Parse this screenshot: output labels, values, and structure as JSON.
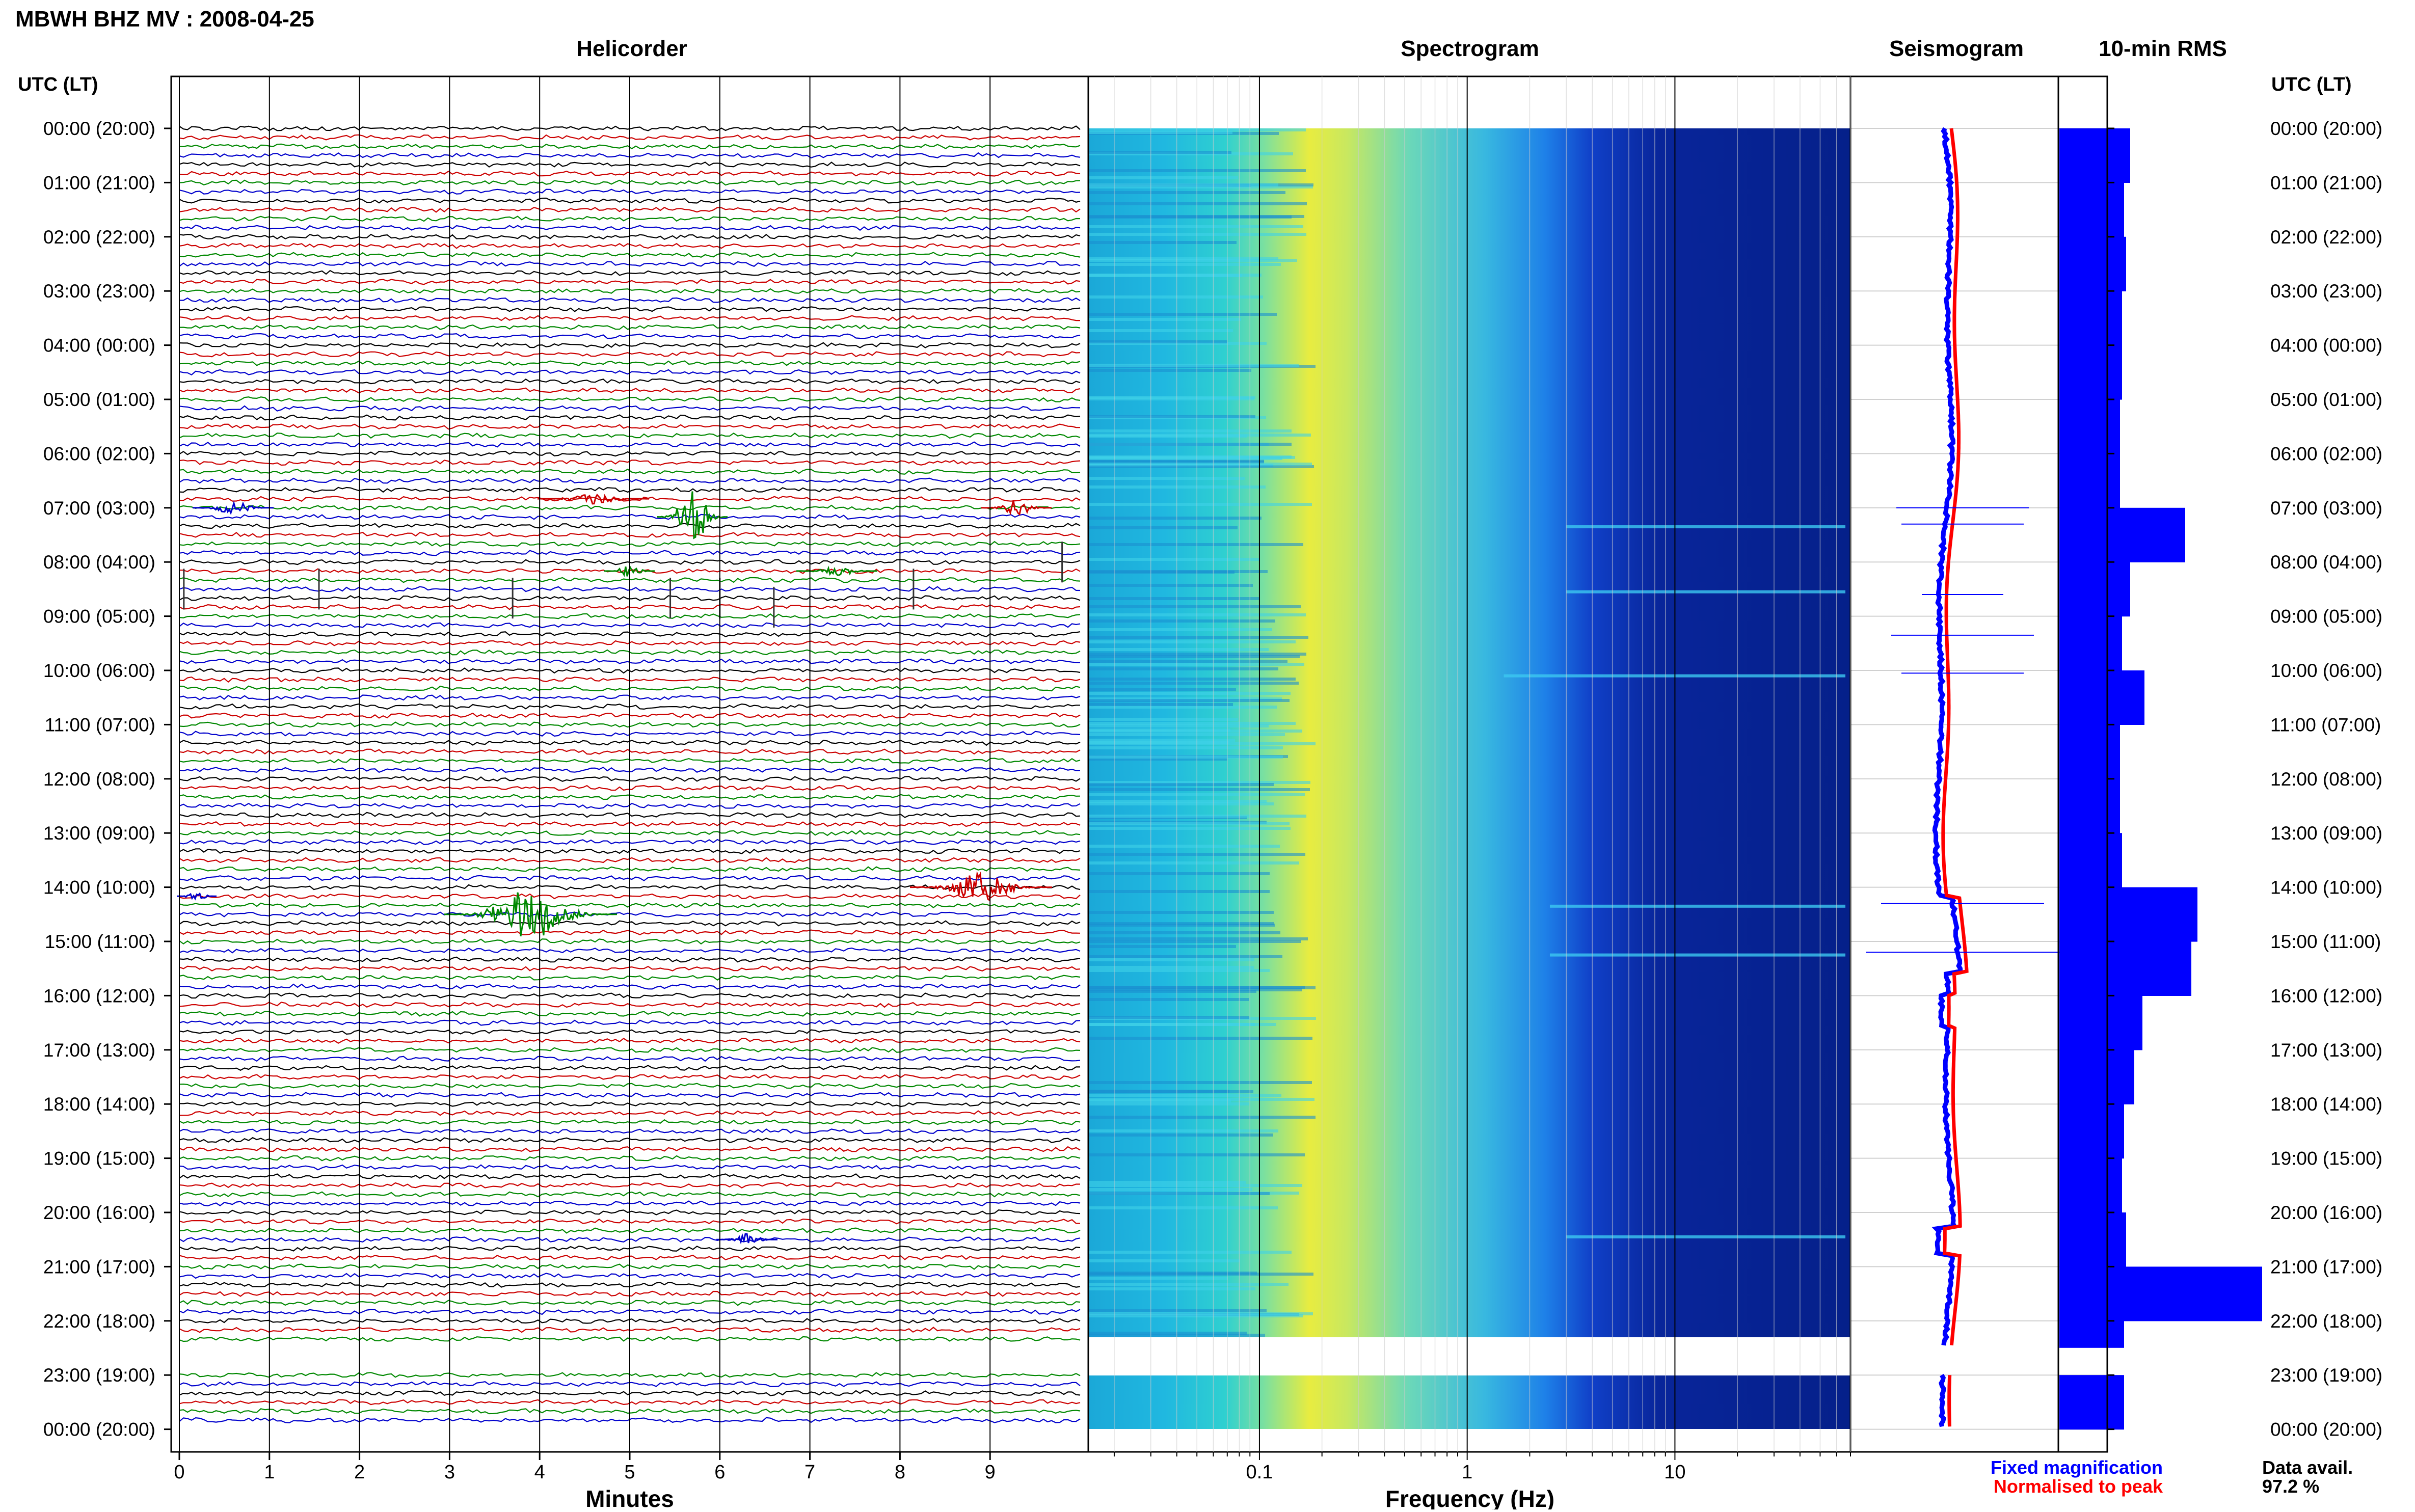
{
  "title": "MBWH BHZ MV : 2008-04-25",
  "panels": {
    "helicorder": "Helicorder",
    "spectrogram": "Spectrogram",
    "seismogram": "Seismogram",
    "rms": "10-min RMS"
  },
  "axis_label_left": "UTC (LT)",
  "axis_label_right": "UTC (LT)",
  "time_labels": [
    "00:00 (20:00)",
    "01:00 (21:00)",
    "02:00 (22:00)",
    "03:00 (23:00)",
    "04:00 (00:00)",
    "05:00 (01:00)",
    "06:00 (02:00)",
    "07:00 (03:00)",
    "08:00 (04:00)",
    "09:00 (05:00)",
    "10:00 (06:00)",
    "11:00 (07:00)",
    "12:00 (08:00)",
    "13:00 (09:00)",
    "14:00 (10:00)",
    "15:00 (11:00)",
    "16:00 (12:00)",
    "17:00 (13:00)",
    "18:00 (14:00)",
    "19:00 (15:00)",
    "20:00 (16:00)",
    "21:00 (17:00)",
    "22:00 (18:00)",
    "23:00 (19:00)",
    "00:00 (20:00)"
  ],
  "helicorder_x": {
    "label": "Minutes",
    "ticks": [
      "0",
      "1",
      "2",
      "3",
      "4",
      "5",
      "6",
      "7",
      "8",
      "9"
    ]
  },
  "spectrogram_x": {
    "label": "Frequency (Hz)",
    "ticks": [
      "0.1",
      "1",
      "10"
    ]
  },
  "legend": {
    "fixed": "Fixed magnification",
    "normalised": "Normalised to peak"
  },
  "data_avail": {
    "label": "Data avail.",
    "value": "97.2 %"
  },
  "colors": {
    "trace_black": "#000000",
    "trace_red": "#cc0000",
    "trace_green": "#008800",
    "trace_blue": "#0000cc",
    "rms_bar": "#0000ff",
    "normalised": "#ff0000"
  },
  "chart_data": {
    "type": "bar",
    "title": "10-min RMS",
    "categories": [
      "00:00",
      "01:00",
      "02:00",
      "03:00",
      "04:00",
      "05:00",
      "06:00",
      "07:00",
      "08:00",
      "09:00",
      "10:00",
      "11:00",
      "12:00",
      "13:00",
      "14:00",
      "15:00",
      "16:00",
      "17:00",
      "18:00",
      "19:00",
      "20:00",
      "21:00",
      "22:00",
      "23:00"
    ],
    "values": [
      0.35,
      0.32,
      0.33,
      0.31,
      0.31,
      0.3,
      0.3,
      0.62,
      0.35,
      0.31,
      0.42,
      0.3,
      0.3,
      0.31,
      0.68,
      0.65,
      0.41,
      0.37,
      0.32,
      0.31,
      0.33,
      1.0,
      0.32,
      0.32
    ],
    "gap_hours": [
      22.5,
      23.0
    ],
    "ylim": [
      0,
      1
    ]
  }
}
